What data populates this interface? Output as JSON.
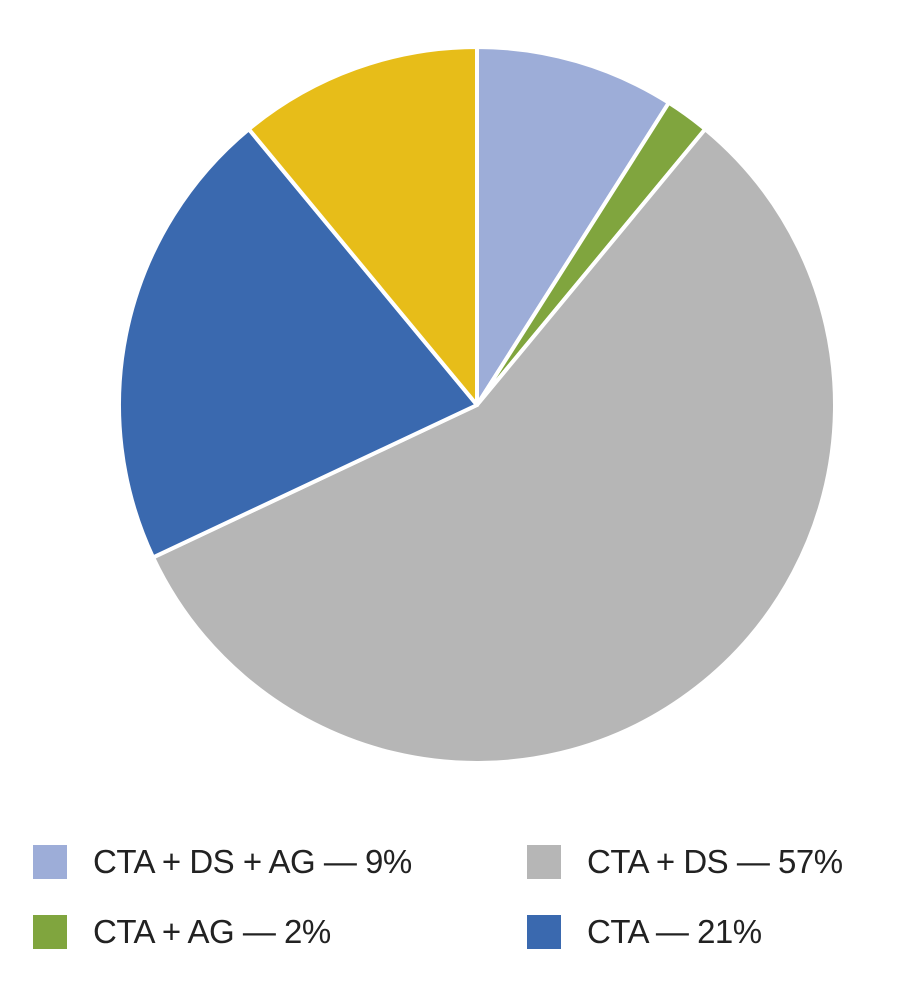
{
  "chart_data": {
    "type": "pie",
    "title": "",
    "start": "top, clockwise",
    "legend_position": "bottom",
    "slices": [
      {
        "label": "CTA + DS + AG — 9%",
        "value": 9,
        "color": "#9DADD8"
      },
      {
        "label": "CTA + AG — 2%",
        "value": 2,
        "color": "#80A53E"
      },
      {
        "label": "CTA + DS — 57%",
        "value": 57,
        "color": "#B6B6B6"
      },
      {
        "label": "CTA — 21%",
        "value": 21,
        "color": "#3A69AF"
      },
      {
        "label": "",
        "value": 11,
        "color": "#E7BD19"
      }
    ],
    "legend": [
      {
        "label": "CTA + DS + AG — 9%",
        "color": "#9DADD8"
      },
      {
        "label": "CTA + DS — 57%",
        "color": "#B6B6B6"
      },
      {
        "label": "CTA + AG — 2%",
        "color": "#80A53E"
      },
      {
        "label": "CTA — 21%",
        "color": "#3A69AF"
      }
    ]
  }
}
